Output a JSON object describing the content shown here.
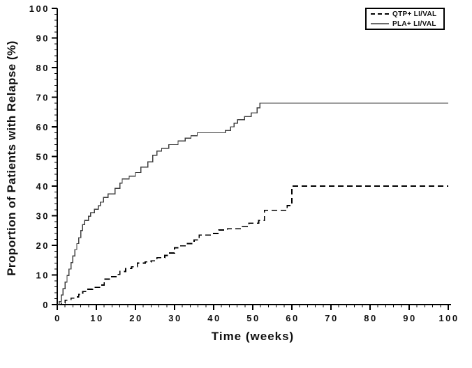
{
  "chart_data": {
    "type": "line",
    "subtype": "kaplan_meier_step",
    "title": "",
    "xlabel": "Time (weeks)",
    "ylabel": "Proportion of Patients with Relapse (%)",
    "xlim": [
      0,
      100
    ],
    "ylim": [
      0,
      100
    ],
    "x_ticks": [
      0,
      10,
      20,
      30,
      40,
      50,
      60,
      70,
      80,
      90,
      100
    ],
    "y_ticks": [
      0,
      10,
      20,
      30,
      40,
      50,
      60,
      70,
      80,
      90,
      100
    ],
    "x_minor_step": 2,
    "y_minor_step": 2,
    "grid": false,
    "legend_position": "top-right",
    "axis_color": "#000000",
    "background": "#ffffff",
    "series": [
      {
        "name": "QTP+ LI/VAL",
        "style": "dashed",
        "color": "#000000",
        "points": [
          [
            0,
            0
          ],
          [
            1,
            0.5
          ],
          [
            2,
            1.5
          ],
          [
            3.5,
            2.2
          ],
          [
            4.5,
            2.6
          ],
          [
            5.5,
            3.4
          ],
          [
            6.5,
            4.4
          ],
          [
            7.5,
            5.2
          ],
          [
            9,
            5.8
          ],
          [
            11,
            6.6
          ],
          [
            12,
            8.6
          ],
          [
            13.5,
            9.4
          ],
          [
            15,
            10.2
          ],
          [
            16,
            11.2
          ],
          [
            17.5,
            12.2
          ],
          [
            19,
            12.8
          ],
          [
            20.5,
            14
          ],
          [
            22.5,
            14.4
          ],
          [
            24,
            14.8
          ],
          [
            25.5,
            15.8
          ],
          [
            27.5,
            16.6
          ],
          [
            28.5,
            17.4
          ],
          [
            30,
            19.2
          ],
          [
            31,
            19.8
          ],
          [
            33,
            20.6
          ],
          [
            35,
            21.8
          ],
          [
            36.3,
            23.5
          ],
          [
            39.5,
            24
          ],
          [
            41.3,
            25.2
          ],
          [
            43.5,
            25.6
          ],
          [
            47.3,
            26.4
          ],
          [
            49,
            27.5
          ],
          [
            51.5,
            28.4
          ],
          [
            53,
            31.8
          ],
          [
            58.8,
            33.4
          ],
          [
            60,
            40
          ],
          [
            100,
            40
          ]
        ]
      },
      {
        "name": "PLA+ LI/VAL",
        "style": "solid",
        "color": "#3f3f3f",
        "points": [
          [
            0,
            0
          ],
          [
            0.5,
            1
          ],
          [
            1,
            3.2
          ],
          [
            1.5,
            5.4
          ],
          [
            2,
            7.6
          ],
          [
            2.5,
            9.8
          ],
          [
            3,
            12
          ],
          [
            3.5,
            14.2
          ],
          [
            4,
            16.4
          ],
          [
            4.5,
            18.6
          ],
          [
            5,
            20.6
          ],
          [
            5.5,
            22.6
          ],
          [
            6,
            25
          ],
          [
            6.5,
            27
          ],
          [
            7,
            28.4
          ],
          [
            8,
            29.8
          ],
          [
            8.5,
            31
          ],
          [
            9.5,
            32.2
          ],
          [
            10.5,
            33.4
          ],
          [
            11,
            34.6
          ],
          [
            11.8,
            36.2
          ],
          [
            13,
            37.4
          ],
          [
            14.8,
            39.2
          ],
          [
            16,
            41
          ],
          [
            16.6,
            42.4
          ],
          [
            18.4,
            43.4
          ],
          [
            20,
            44.6
          ],
          [
            21.4,
            46.4
          ],
          [
            23.2,
            48.2
          ],
          [
            24.4,
            50.4
          ],
          [
            25.5,
            51.8
          ],
          [
            26.7,
            52.8
          ],
          [
            28.5,
            54
          ],
          [
            30.9,
            55.2
          ],
          [
            32.7,
            56.2
          ],
          [
            34.2,
            57
          ],
          [
            35.8,
            58
          ],
          [
            43,
            58.8
          ],
          [
            44.3,
            60
          ],
          [
            45.2,
            61.2
          ],
          [
            46.1,
            62.4
          ],
          [
            47.9,
            63.5
          ],
          [
            49.6,
            64.7
          ],
          [
            51.1,
            66.4
          ],
          [
            51.8,
            68
          ],
          [
            100,
            68
          ]
        ]
      }
    ]
  }
}
